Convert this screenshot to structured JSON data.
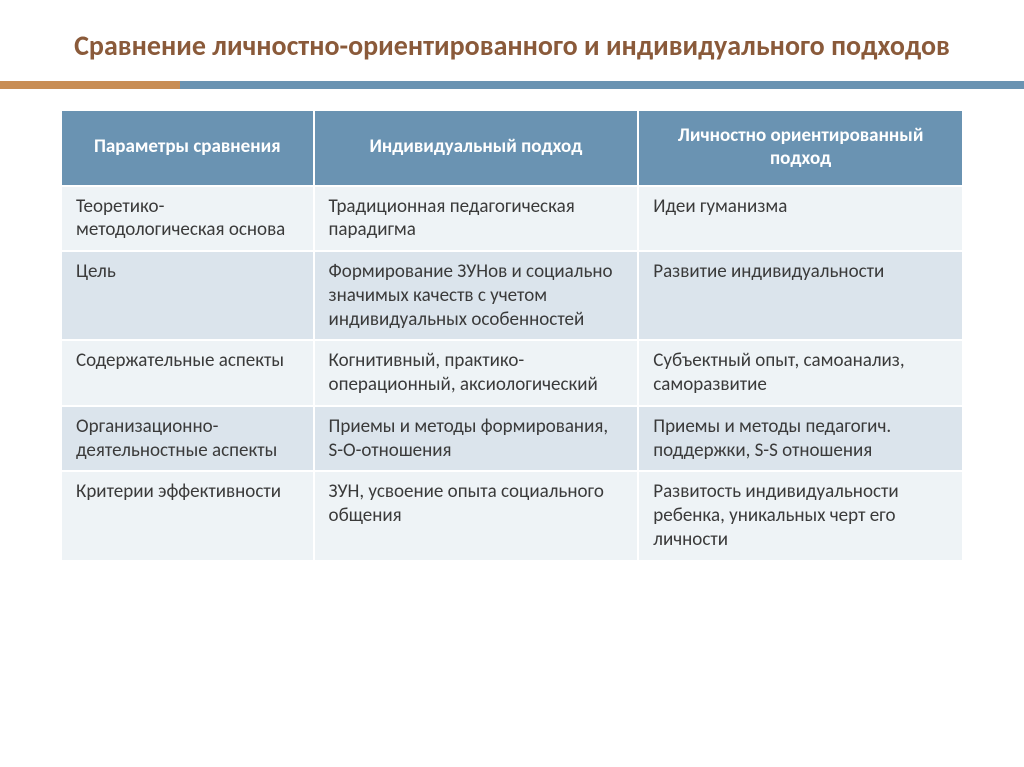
{
  "title": "Сравнение личностно-ориентированного и индивидуального подходов",
  "colors": {
    "title_text": "#8a5a3a",
    "accent_bar": "#c88d55",
    "primary_bar": "#6a93b2",
    "header_bg": "#6a93b2",
    "header_text": "#ffffff",
    "row_odd_bg": "#eef3f6",
    "row_even_bg": "#dbe4ec",
    "cell_text": "#3a3a3a",
    "border": "#ffffff",
    "slide_bg": "#ffffff"
  },
  "typography": {
    "title_fontsize": 28,
    "header_fontsize": 19,
    "cell_fontsize": 19,
    "font_family": "Calibri"
  },
  "table": {
    "columns": [
      {
        "label": "Параметры сравнения",
        "width_pct": 28
      },
      {
        "label": "Индивидуальный подход",
        "width_pct": 36
      },
      {
        "label": "Личностно ориентированный подход",
        "width_pct": 36
      }
    ],
    "rows": [
      {
        "param": "Теоретико-методологическая основа",
        "individual": "Традиционная педагогическая парадигма",
        "personal": "Идеи гуманизма"
      },
      {
        "param": "Цель",
        "individual": "Формирование ЗУНов и социально значимых качеств с учетом индивидуальных особенностей",
        "personal": "Развитие индивидуальности"
      },
      {
        "param": "Содержательные аспекты",
        "individual": "Когнитивный, практико-операционный, аксиологический",
        "personal": "Субъектный опыт, самоанализ, саморазвитие"
      },
      {
        "param": "Организационно-деятельностные аспекты",
        "individual": "Приемы и методы формирования, S-O-отношения",
        "personal": "Приемы и методы педагогич. поддержки, S-S отношения"
      },
      {
        "param": "Критерии эффективности",
        "individual": "ЗУН,\nусвоение опыта социального общения",
        "personal": "Развитость индивидуальности ребенка, уникальных черт его личности"
      }
    ]
  }
}
